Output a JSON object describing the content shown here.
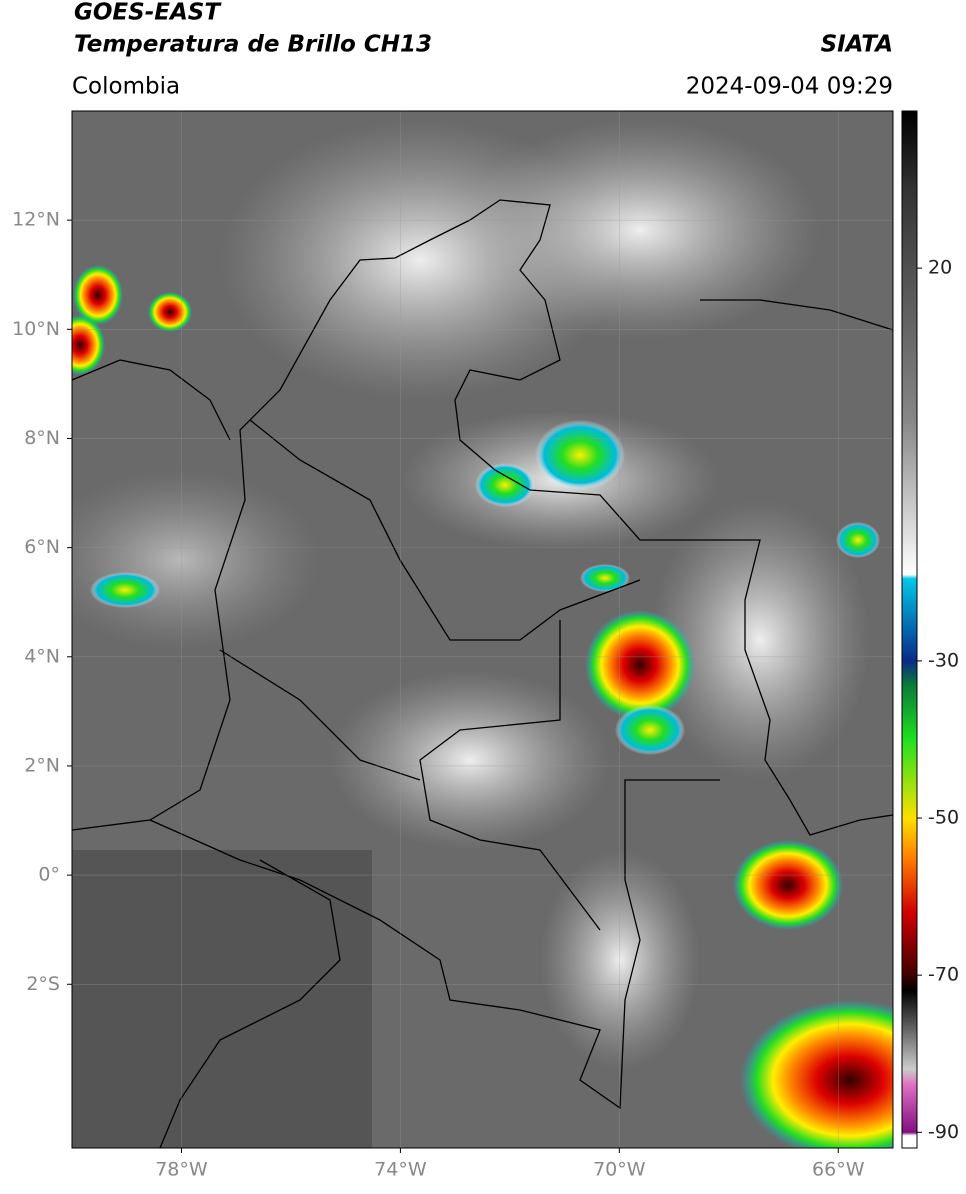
{
  "header": {
    "title": "GOES-EAST",
    "subtitle": "Temperatura de Brillo CH13",
    "source": "SIATA",
    "region": "Colombia",
    "datetime": "2024-09-04 09:29"
  },
  "map": {
    "lon_range": [
      -80,
      -65
    ],
    "lat_range": [
      -5,
      14
    ],
    "lon_ticks": [
      {
        "value": -78,
        "label": "78°W"
      },
      {
        "value": -74,
        "label": "74°W"
      },
      {
        "value": -70,
        "label": "70°W"
      },
      {
        "value": -66,
        "label": "66°W"
      }
    ],
    "lat_ticks": [
      {
        "value": 12,
        "label": "12°N"
      },
      {
        "value": 10,
        "label": "10°N"
      },
      {
        "value": 8,
        "label": "8°N"
      },
      {
        "value": 6,
        "label": "6°N"
      },
      {
        "value": 4,
        "label": "4°N"
      },
      {
        "value": 2,
        "label": "2°N"
      },
      {
        "value": 0,
        "label": "0°"
      },
      {
        "value": -2,
        "label": "2°S"
      }
    ]
  },
  "colorbar": {
    "range": [
      -92,
      40
    ],
    "ticks": [
      20,
      -30,
      -50,
      -70,
      -90
    ]
  }
}
